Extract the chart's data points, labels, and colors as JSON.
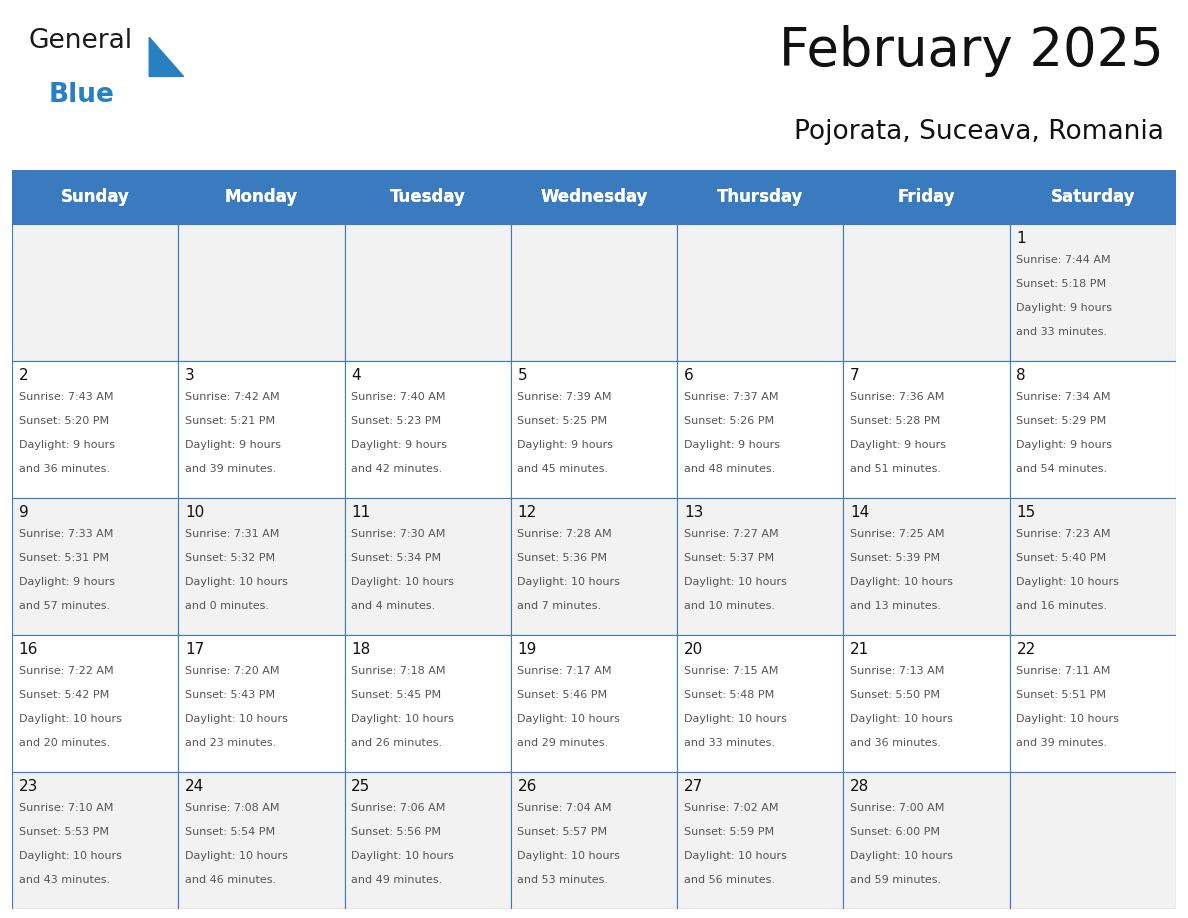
{
  "title": "February 2025",
  "subtitle": "Pojorata, Suceava, Romania",
  "header_bg": "#3a7abf",
  "header_text_color": "#ffffff",
  "cell_bg": "#f2f2f2",
  "border_color": "#3a7abf",
  "day_headers": [
    "Sunday",
    "Monday",
    "Tuesday",
    "Wednesday",
    "Thursday",
    "Friday",
    "Saturday"
  ],
  "weeks": [
    [
      {
        "day": null,
        "info": null
      },
      {
        "day": null,
        "info": null
      },
      {
        "day": null,
        "info": null
      },
      {
        "day": null,
        "info": null
      },
      {
        "day": null,
        "info": null
      },
      {
        "day": null,
        "info": null
      },
      {
        "day": 1,
        "info": "Sunrise: 7:44 AM\nSunset: 5:18 PM\nDaylight: 9 hours\nand 33 minutes."
      }
    ],
    [
      {
        "day": 2,
        "info": "Sunrise: 7:43 AM\nSunset: 5:20 PM\nDaylight: 9 hours\nand 36 minutes."
      },
      {
        "day": 3,
        "info": "Sunrise: 7:42 AM\nSunset: 5:21 PM\nDaylight: 9 hours\nand 39 minutes."
      },
      {
        "day": 4,
        "info": "Sunrise: 7:40 AM\nSunset: 5:23 PM\nDaylight: 9 hours\nand 42 minutes."
      },
      {
        "day": 5,
        "info": "Sunrise: 7:39 AM\nSunset: 5:25 PM\nDaylight: 9 hours\nand 45 minutes."
      },
      {
        "day": 6,
        "info": "Sunrise: 7:37 AM\nSunset: 5:26 PM\nDaylight: 9 hours\nand 48 minutes."
      },
      {
        "day": 7,
        "info": "Sunrise: 7:36 AM\nSunset: 5:28 PM\nDaylight: 9 hours\nand 51 minutes."
      },
      {
        "day": 8,
        "info": "Sunrise: 7:34 AM\nSunset: 5:29 PM\nDaylight: 9 hours\nand 54 minutes."
      }
    ],
    [
      {
        "day": 9,
        "info": "Sunrise: 7:33 AM\nSunset: 5:31 PM\nDaylight: 9 hours\nand 57 minutes."
      },
      {
        "day": 10,
        "info": "Sunrise: 7:31 AM\nSunset: 5:32 PM\nDaylight: 10 hours\nand 0 minutes."
      },
      {
        "day": 11,
        "info": "Sunrise: 7:30 AM\nSunset: 5:34 PM\nDaylight: 10 hours\nand 4 minutes."
      },
      {
        "day": 12,
        "info": "Sunrise: 7:28 AM\nSunset: 5:36 PM\nDaylight: 10 hours\nand 7 minutes."
      },
      {
        "day": 13,
        "info": "Sunrise: 7:27 AM\nSunset: 5:37 PM\nDaylight: 10 hours\nand 10 minutes."
      },
      {
        "day": 14,
        "info": "Sunrise: 7:25 AM\nSunset: 5:39 PM\nDaylight: 10 hours\nand 13 minutes."
      },
      {
        "day": 15,
        "info": "Sunrise: 7:23 AM\nSunset: 5:40 PM\nDaylight: 10 hours\nand 16 minutes."
      }
    ],
    [
      {
        "day": 16,
        "info": "Sunrise: 7:22 AM\nSunset: 5:42 PM\nDaylight: 10 hours\nand 20 minutes."
      },
      {
        "day": 17,
        "info": "Sunrise: 7:20 AM\nSunset: 5:43 PM\nDaylight: 10 hours\nand 23 minutes."
      },
      {
        "day": 18,
        "info": "Sunrise: 7:18 AM\nSunset: 5:45 PM\nDaylight: 10 hours\nand 26 minutes."
      },
      {
        "day": 19,
        "info": "Sunrise: 7:17 AM\nSunset: 5:46 PM\nDaylight: 10 hours\nand 29 minutes."
      },
      {
        "day": 20,
        "info": "Sunrise: 7:15 AM\nSunset: 5:48 PM\nDaylight: 10 hours\nand 33 minutes."
      },
      {
        "day": 21,
        "info": "Sunrise: 7:13 AM\nSunset: 5:50 PM\nDaylight: 10 hours\nand 36 minutes."
      },
      {
        "day": 22,
        "info": "Sunrise: 7:11 AM\nSunset: 5:51 PM\nDaylight: 10 hours\nand 39 minutes."
      }
    ],
    [
      {
        "day": 23,
        "info": "Sunrise: 7:10 AM\nSunset: 5:53 PM\nDaylight: 10 hours\nand 43 minutes."
      },
      {
        "day": 24,
        "info": "Sunrise: 7:08 AM\nSunset: 5:54 PM\nDaylight: 10 hours\nand 46 minutes."
      },
      {
        "day": 25,
        "info": "Sunrise: 7:06 AM\nSunset: 5:56 PM\nDaylight: 10 hours\nand 49 minutes."
      },
      {
        "day": 26,
        "info": "Sunrise: 7:04 AM\nSunset: 5:57 PM\nDaylight: 10 hours\nand 53 minutes."
      },
      {
        "day": 27,
        "info": "Sunrise: 7:02 AM\nSunset: 5:59 PM\nDaylight: 10 hours\nand 56 minutes."
      },
      {
        "day": 28,
        "info": "Sunrise: 7:00 AM\nSunset: 6:00 PM\nDaylight: 10 hours\nand 59 minutes."
      },
      {
        "day": null,
        "info": null
      }
    ]
  ],
  "logo_general_color": "#1a1a1a",
  "logo_blue_color": "#2980c0",
  "logo_triangle_color": "#2980c0",
  "title_fontsize": 38,
  "subtitle_fontsize": 19,
  "header_fontsize": 12,
  "day_num_fontsize": 11,
  "info_fontsize": 8
}
